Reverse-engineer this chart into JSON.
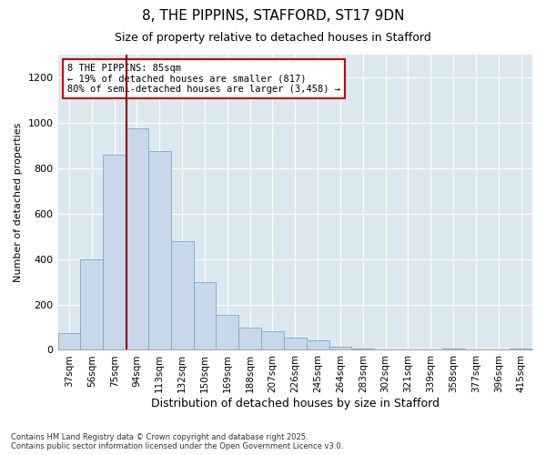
{
  "title": "8, THE PIPPINS, STAFFORD, ST17 9DN",
  "subtitle": "Size of property relative to detached houses in Stafford",
  "xlabel": "Distribution of detached houses by size in Stafford",
  "ylabel": "Number of detached properties",
  "bar_color": "#c8d8ea",
  "bar_edge_color": "#7aaac8",
  "bg_color": "#dce8f0",
  "vline_color": "#8b0000",
  "annotation_text": "8 THE PIPPINS: 85sqm\n← 19% of detached houses are smaller (817)\n80% of semi-detached houses are larger (3,458) →",
  "annotation_box_color": "white",
  "annotation_box_edge": "#cc0000",
  "footnote": "Contains HM Land Registry data © Crown copyright and database right 2025.\nContains public sector information licensed under the Open Government Licence v3.0.",
  "categories": [
    "37sqm",
    "56sqm",
    "75sqm",
    "94sqm",
    "113sqm",
    "132sqm",
    "150sqm",
    "169sqm",
    "188sqm",
    "207sqm",
    "226sqm",
    "245sqm",
    "264sqm",
    "283sqm",
    "302sqm",
    "321sqm",
    "339sqm",
    "358sqm",
    "377sqm",
    "396sqm",
    "415sqm"
  ],
  "values": [
    75,
    400,
    860,
    975,
    875,
    480,
    300,
    155,
    100,
    80,
    55,
    40,
    15,
    5,
    0,
    0,
    0,
    5,
    0,
    0,
    5
  ],
  "ylim": [
    0,
    1300
  ],
  "yticks": [
    0,
    200,
    400,
    600,
    800,
    1000,
    1200
  ],
  "vline_index": 2.53
}
